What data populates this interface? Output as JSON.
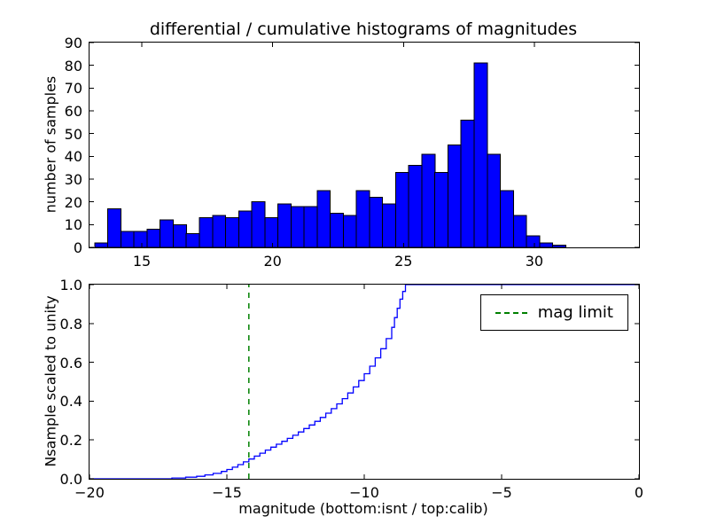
{
  "figure": {
    "background": "#ffffff"
  },
  "chart_data": [
    {
      "id": "differential-histogram",
      "type": "bar",
      "title": "differential / cumulative histograms of magnitudes",
      "ylabel": "number of samples",
      "xlabel": "",
      "xlim": [
        13,
        34
      ],
      "ylim": [
        0,
        90
      ],
      "grid": false,
      "bar_color": "#0000ff",
      "bar_edge_color": "#000000",
      "bins": {
        "start": 13.2,
        "width": 0.5
      },
      "values": [
        2,
        17,
        7,
        7,
        8,
        12,
        10,
        6,
        13,
        14,
        13,
        16,
        20,
        13,
        19,
        18,
        18,
        25,
        15,
        14,
        25,
        22,
        19,
        33,
        36,
        41,
        33,
        45,
        56,
        81,
        41,
        25,
        14,
        5,
        2,
        1
      ],
      "xticks": [
        {
          "v": 15,
          "label": "15"
        },
        {
          "v": 20,
          "label": "20"
        },
        {
          "v": 25,
          "label": "25"
        },
        {
          "v": 30,
          "label": "30"
        }
      ],
      "yticks": [
        {
          "v": 0,
          "label": "0"
        },
        {
          "v": 10,
          "label": "10"
        },
        {
          "v": 20,
          "label": "20"
        },
        {
          "v": 30,
          "label": "30"
        },
        {
          "v": 40,
          "label": "40"
        },
        {
          "v": 50,
          "label": "50"
        },
        {
          "v": 60,
          "label": "60"
        },
        {
          "v": 70,
          "label": "70"
        },
        {
          "v": 80,
          "label": "80"
        },
        {
          "v": 90,
          "label": "90"
        }
      ]
    },
    {
      "id": "cumulative-histogram",
      "type": "line",
      "ylabel": "Nsample scaled to unity",
      "xlabel": "magnitude (bottom:isnt / top:calib)",
      "xlim": [
        -20,
        0
      ],
      "ylim": [
        0,
        1.0
      ],
      "grid": false,
      "line_color": "#0000ff",
      "mag_limit": {
        "x": -14.2,
        "color": "#008000",
        "style": "dashed"
      },
      "legend": {
        "position": "upper right",
        "entries": [
          {
            "label": "mag limit",
            "color": "#008000",
            "style": "dashed"
          }
        ]
      },
      "steps": [
        [
          -20,
          0
        ],
        [
          -17.0,
          0.004
        ],
        [
          -16.5,
          0.008
        ],
        [
          -16.1,
          0.013
        ],
        [
          -15.8,
          0.02
        ],
        [
          -15.5,
          0.028
        ],
        [
          -15.2,
          0.038
        ],
        [
          -15.0,
          0.048
        ],
        [
          -14.8,
          0.06
        ],
        [
          -14.6,
          0.073
        ],
        [
          -14.4,
          0.087
        ],
        [
          -14.2,
          0.102
        ],
        [
          -14.0,
          0.117
        ],
        [
          -13.8,
          0.132
        ],
        [
          -13.6,
          0.148
        ],
        [
          -13.4,
          0.163
        ],
        [
          -13.2,
          0.178
        ],
        [
          -13.0,
          0.193
        ],
        [
          -12.8,
          0.208
        ],
        [
          -12.6,
          0.224
        ],
        [
          -12.4,
          0.241
        ],
        [
          -12.2,
          0.259
        ],
        [
          -12.0,
          0.277
        ],
        [
          -11.8,
          0.296
        ],
        [
          -11.6,
          0.316
        ],
        [
          -11.4,
          0.338
        ],
        [
          -11.2,
          0.361
        ],
        [
          -11.0,
          0.386
        ],
        [
          -10.8,
          0.413
        ],
        [
          -10.6,
          0.442
        ],
        [
          -10.4,
          0.473
        ],
        [
          -10.2,
          0.506
        ],
        [
          -10.0,
          0.541
        ],
        [
          -9.8,
          0.58
        ],
        [
          -9.6,
          0.623
        ],
        [
          -9.4,
          0.67
        ],
        [
          -9.2,
          0.722
        ],
        [
          -9.0,
          0.78
        ],
        [
          -8.9,
          0.83
        ],
        [
          -8.8,
          0.878
        ],
        [
          -8.7,
          0.925
        ],
        [
          -8.6,
          0.965
        ],
        [
          -8.5,
          1.0
        ],
        [
          0,
          1.0
        ]
      ],
      "xticks": [
        {
          "v": -20,
          "label": "−20"
        },
        {
          "v": -15,
          "label": "−15"
        },
        {
          "v": -10,
          "label": "−10"
        },
        {
          "v": -5,
          "label": "−5"
        },
        {
          "v": 0,
          "label": "0"
        }
      ],
      "yticks": [
        {
          "v": 0.0,
          "label": "0.0"
        },
        {
          "v": 0.2,
          "label": "0.2"
        },
        {
          "v": 0.4,
          "label": "0.4"
        },
        {
          "v": 0.6,
          "label": "0.6"
        },
        {
          "v": 0.8,
          "label": "0.8"
        },
        {
          "v": 1.0,
          "label": "1.0"
        }
      ]
    }
  ]
}
